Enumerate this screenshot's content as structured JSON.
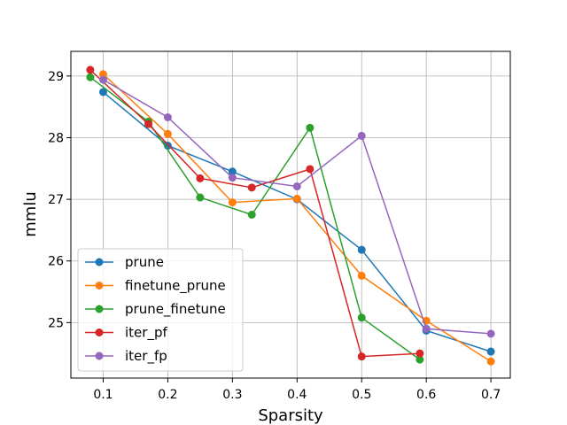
{
  "chart_data": {
    "type": "line",
    "title": "",
    "xlabel": "Sparsity",
    "ylabel": "mmlu",
    "xlim": [
      0.05,
      0.73
    ],
    "ylim": [
      24.1,
      29.4
    ],
    "xticks": [
      "0.1",
      "0.2",
      "0.3",
      "0.4",
      "0.5",
      "0.6",
      "0.7"
    ],
    "yticks": [
      "25",
      "26",
      "27",
      "28",
      "29"
    ],
    "grid": true,
    "legend_position": "lower-left",
    "series": [
      {
        "name": "prune",
        "color": "#1f77b4",
        "points": [
          [
            0.1,
            28.74
          ],
          [
            0.2,
            27.87
          ],
          [
            0.3,
            27.45
          ],
          [
            0.4,
            27.0
          ],
          [
            0.5,
            26.18
          ],
          [
            0.6,
            24.87
          ],
          [
            0.7,
            24.53
          ]
        ]
      },
      {
        "name": "finetune_prune",
        "color": "#ff7f0e",
        "points": [
          [
            0.1,
            29.03
          ],
          [
            0.2,
            28.06
          ],
          [
            0.3,
            26.95
          ],
          [
            0.4,
            27.01
          ],
          [
            0.5,
            25.76
          ],
          [
            0.6,
            25.03
          ],
          [
            0.7,
            24.37
          ]
        ]
      },
      {
        "name": "prune_finetune",
        "color": "#2ca02c",
        "points": [
          [
            0.08,
            28.98
          ],
          [
            0.17,
            28.26
          ],
          [
            0.25,
            27.03
          ],
          [
            0.33,
            26.75
          ],
          [
            0.42,
            28.16
          ],
          [
            0.5,
            25.08
          ],
          [
            0.59,
            24.4
          ]
        ]
      },
      {
        "name": "iter_pf",
        "color": "#d62728",
        "points": [
          [
            0.08,
            29.1
          ],
          [
            0.17,
            28.22
          ],
          [
            0.25,
            27.34
          ],
          [
            0.33,
            27.19
          ],
          [
            0.42,
            27.49
          ],
          [
            0.5,
            24.45
          ],
          [
            0.59,
            24.5
          ]
        ]
      },
      {
        "name": "iter_fp",
        "color": "#9467bd",
        "points": [
          [
            0.1,
            28.94
          ],
          [
            0.2,
            28.33
          ],
          [
            0.3,
            27.35
          ],
          [
            0.4,
            27.21
          ],
          [
            0.5,
            28.03
          ],
          [
            0.6,
            24.9
          ],
          [
            0.7,
            24.82
          ]
        ]
      }
    ]
  }
}
